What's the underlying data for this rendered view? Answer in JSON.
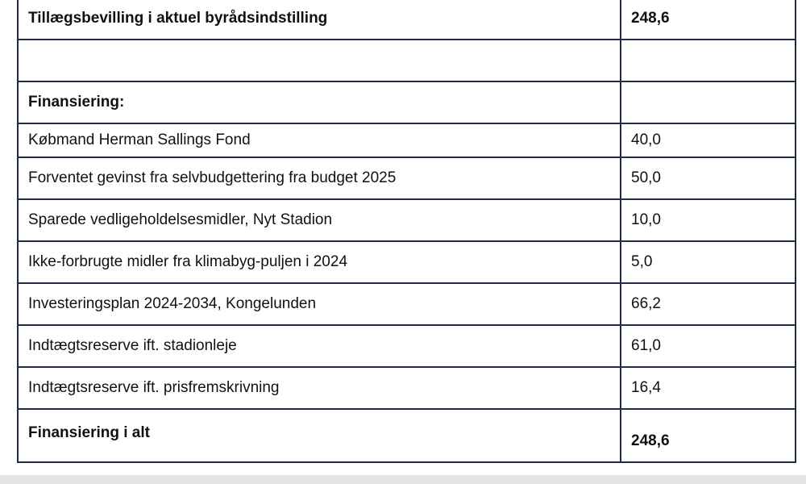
{
  "rows": {
    "supplement": {
      "label": "Tillægsbevilling i aktuel byrådsindstilling",
      "value": "248,6"
    },
    "financing_header": {
      "label": "Finansiering:"
    },
    "items": [
      {
        "label": "Købmand Herman Sallings Fond",
        "value": "40,0"
      },
      {
        "label": "Forventet gevinst fra selvbudgettering fra budget 2025",
        "value": "50,0"
      },
      {
        "label": "Sparede vedligeholdelsesmidler, Nyt Stadion",
        "value": "10,0"
      },
      {
        "label": "Ikke-forbrugte midler fra klimabyg-puljen i 2024",
        "value": "5,0"
      },
      {
        "label": "Investeringsplan 2024-2034, Kongelunden",
        "value": "66,2"
      },
      {
        "label": "Indtægtsreserve ift. stadionleje",
        "value": "61,0"
      },
      {
        "label": "Indtægtsreserve ift. prisfremskrivning",
        "value": "16,4"
      }
    ],
    "total": {
      "label": "Finansiering i alt",
      "value": "248,6"
    }
  }
}
